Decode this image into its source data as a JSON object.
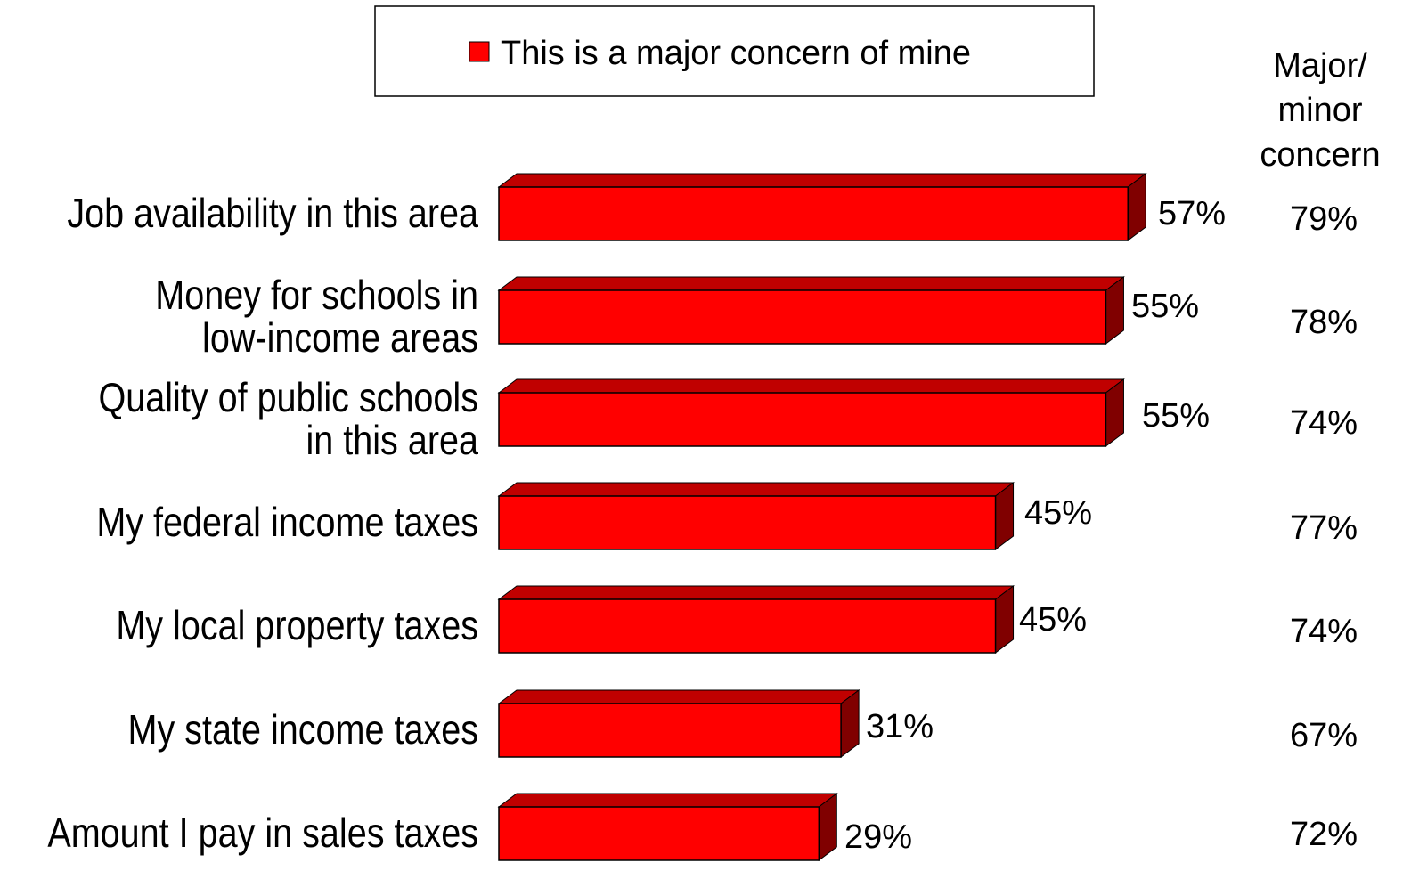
{
  "chart_data": {
    "type": "bar",
    "orientation": "horizontal",
    "style": "3d",
    "legend": {
      "label": "This is a major concern of mine",
      "placement": "top",
      "color": "#ff0000"
    },
    "side_column": {
      "header": [
        "Major/",
        "minor",
        "concern"
      ],
      "values": [
        "79%",
        "78%",
        "74%",
        "77%",
        "74%",
        "67%",
        "72%"
      ]
    },
    "categories": [
      [
        "Job availability in this area"
      ],
      [
        "Money for schools in",
        "low-income areas"
      ],
      [
        "Quality of public schools",
        "in this area"
      ],
      [
        "My federal income taxes"
      ],
      [
        "My local property taxes"
      ],
      [
        "My state income taxes"
      ],
      [
        "Amount I pay in sales taxes"
      ]
    ],
    "series": [
      {
        "name": "This is a major concern of mine",
        "values": [
          57,
          55,
          55,
          45,
          45,
          31,
          29
        ],
        "labels": [
          "57%",
          "55%",
          "55%",
          "45%",
          "45%",
          "31%",
          "29%"
        ]
      }
    ],
    "colors": {
      "front": "#ff0000",
      "top": "#c00000",
      "side": "#800000",
      "outline": "#000000"
    },
    "grid": false
  }
}
